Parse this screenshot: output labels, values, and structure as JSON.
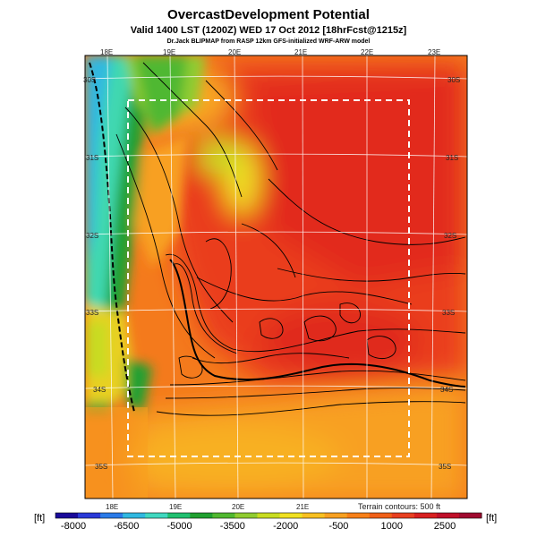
{
  "header": {
    "title": "OvercastDevelopment Potential",
    "subtitle": "Valid 1400 LST (1200Z) WED 17 Oct 2012 [18hrFcst@1215z]",
    "credit": "Dr.Jack BLIPMAP from RASP 12km GFS-initialized WRF-ARW model"
  },
  "map": {
    "lon_labels_top": [
      "18E",
      "19E",
      "20E",
      "21E",
      "22E",
      "23E"
    ],
    "lon_labels_bottom": [
      "18E",
      "19E",
      "20E",
      "21E"
    ],
    "lat_labels_left": [
      "30S",
      "31S",
      "32S",
      "33S",
      "34S",
      "35S"
    ],
    "lat_labels_right": [
      "30S",
      "31S",
      "32S",
      "33S",
      "34S",
      "35S"
    ],
    "contour_note": "Terrain contours: 500 ft"
  },
  "colorbar": {
    "unit_left": "[ft]",
    "unit_right": "[ft]",
    "tick_labels": [
      "-8000",
      "-6500",
      "-5000",
      "-3500",
      "-2000",
      "-500",
      "1000",
      "2500"
    ],
    "colors": [
      "#1a0a9a",
      "#2a3ad8",
      "#2a7ae8",
      "#30b8e0",
      "#40d8c0",
      "#20c070",
      "#20a030",
      "#50b830",
      "#90cc30",
      "#c8dc20",
      "#f0e020",
      "#f8c020",
      "#f8a020",
      "#f88018",
      "#f06018",
      "#e84020",
      "#d82020",
      "#c0102a",
      "#a00a30"
    ]
  }
}
